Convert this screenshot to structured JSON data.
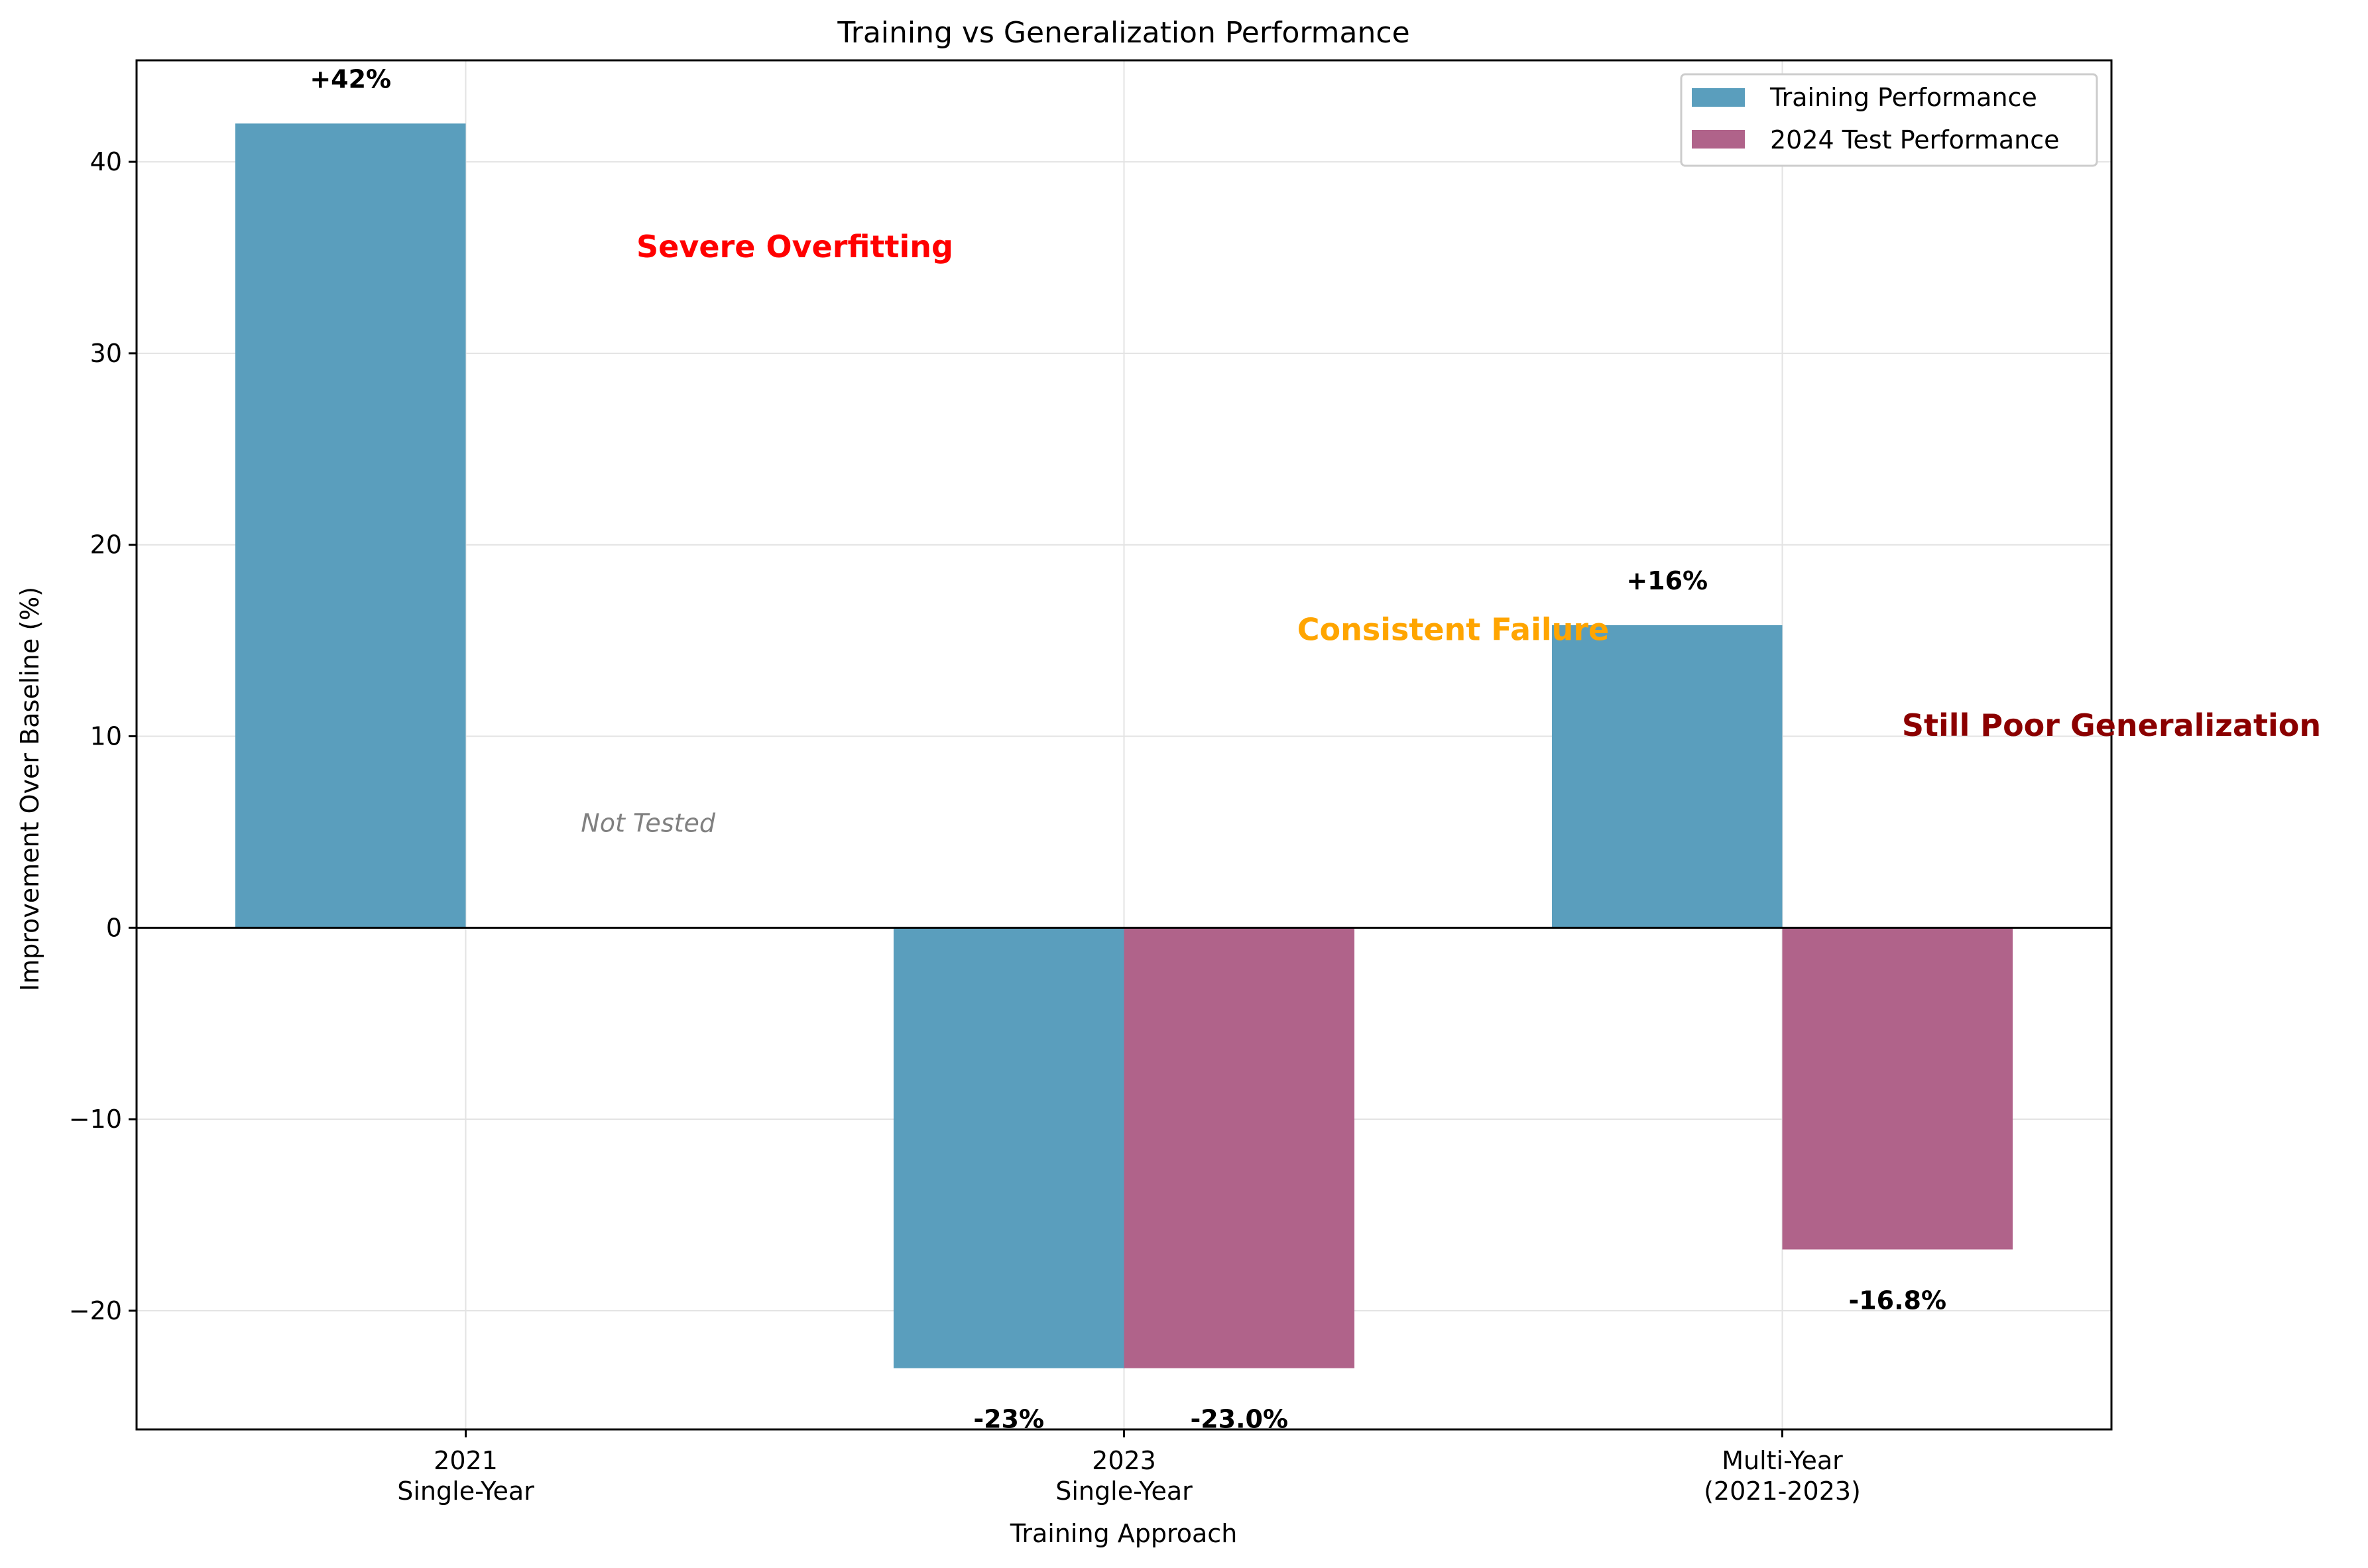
{
  "chart_data": {
    "type": "bar",
    "title": "Training vs Generalization Performance",
    "xlabel": "Training Approach",
    "ylabel": "Improvement Over Baseline (%)",
    "categories": [
      [
        "2021",
        "Single-Year"
      ],
      [
        "2023",
        "Single-Year"
      ],
      [
        "Multi-Year",
        "(2021-2023)"
      ]
    ],
    "ylim": [
      -26.2,
      45.3
    ],
    "yticks": [
      -20,
      -10,
      0,
      10,
      20,
      30,
      40
    ],
    "ytick_labels": [
      "−20",
      "−10",
      "0",
      "10",
      "20",
      "30",
      "40"
    ],
    "grid": true,
    "legend_position": "top-right",
    "series": [
      {
        "name": "Training Performance",
        "color": "#5a9ebd",
        "values": [
          42,
          -23,
          15.8
        ],
        "labels": [
          "+42%",
          "-23%",
          "+16%"
        ]
      },
      {
        "name": "2024 Test Performance",
        "color": "#b0638a",
        "values": [
          null,
          -23.0,
          -16.8
        ],
        "labels": [
          null,
          "-23.0%",
          "-16.8%"
        ]
      }
    ],
    "annotations": [
      {
        "text": "Severe Overfitting",
        "color": "#ff0000",
        "bold": true,
        "italic": false,
        "x": 0.5,
        "y": 35.5
      },
      {
        "text": "Consistent Failure",
        "color": "#ffa500",
        "bold": true,
        "italic": false,
        "x": 1.5,
        "y": 15.5
      },
      {
        "text": "Still Poor Generalization",
        "color": "#8b0000",
        "bold": true,
        "italic": false,
        "x": 2.5,
        "y": 10.5
      },
      {
        "text": "Not Tested",
        "color": "#808080",
        "bold": false,
        "italic": true,
        "x": 0.175,
        "y": 5.5
      }
    ]
  }
}
